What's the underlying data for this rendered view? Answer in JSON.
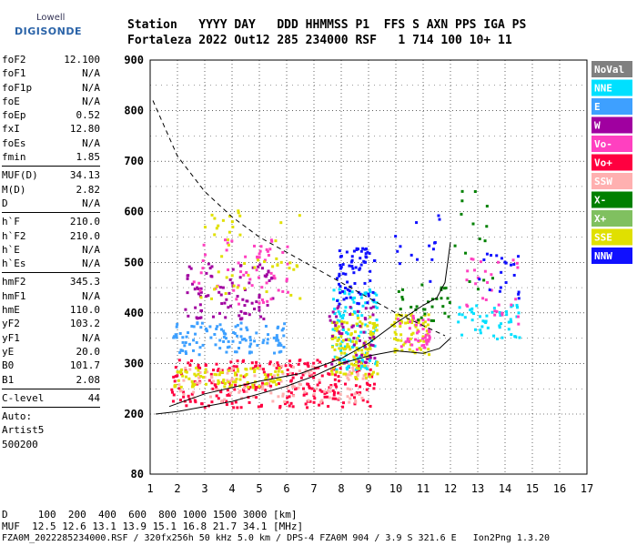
{
  "logo": {
    "top": "Lowell",
    "main": "DIGISONDE"
  },
  "header": {
    "line1": "Station   YYYY DAY   DDD HHMMSS P1  FFS S AXN PPS IGA PS",
    "line2": "Fortaleza 2022 Out12 285 234000 RSF   1 714 100 10+ 11"
  },
  "params": {
    "group1": [
      {
        "name": "foF2",
        "value": "12.100"
      },
      {
        "name": "foF1",
        "value": "N/A"
      },
      {
        "name": "foF1p",
        "value": "N/A"
      },
      {
        "name": "foE",
        "value": "N/A"
      },
      {
        "name": "foEp",
        "value": "0.52"
      },
      {
        "name": "fxI",
        "value": "12.80"
      },
      {
        "name": "foEs",
        "value": "N/A"
      },
      {
        "name": "fmin",
        "value": "1.85"
      }
    ],
    "group2": [
      {
        "name": "MUF(D)",
        "value": "34.13"
      },
      {
        "name": "M(D)",
        "value": "2.82"
      },
      {
        "name": "D",
        "value": "N/A"
      }
    ],
    "group3": [
      {
        "name": "h`F",
        "value": "210.0"
      },
      {
        "name": "h`F2",
        "value": "210.0"
      },
      {
        "name": "h`E",
        "value": "N/A"
      },
      {
        "name": "h`Es",
        "value": "N/A"
      }
    ],
    "group4": [
      {
        "name": "hmF2",
        "value": "345.3"
      },
      {
        "name": "hmF1",
        "value": "N/A"
      },
      {
        "name": "hmE",
        "value": "110.0"
      },
      {
        "name": "yF2",
        "value": "103.2"
      },
      {
        "name": "yF1",
        "value": "N/A"
      },
      {
        "name": "yE",
        "value": "20.0"
      },
      {
        "name": "B0",
        "value": "101.7"
      },
      {
        "name": "B1",
        "value": "2.08"
      }
    ],
    "group5": [
      {
        "name": "C-level",
        "value": "44"
      }
    ],
    "auto": [
      "Auto:",
      "Artist5",
      "500200"
    ]
  },
  "footer": {
    "line1": "D     100  200  400  600  800 1000 1500 3000 [km]",
    "line2": "MUF  12.5 12.6 13.1 13.9 15.1 16.8 21.7 34.1 [MHz]",
    "line3": "FZA0M_2022285234000.RSF / 320fx256h 50 kHz 5.0 km / DPS-4 FZA0M 904 / 3.9 S 321.6 E   Ion2Png 1.3.20"
  },
  "chart_data": {
    "type": "scatter",
    "x_range": [
      1,
      17
    ],
    "y_range": [
      80,
      900
    ],
    "x_ticks": [
      1,
      2,
      3,
      4,
      5,
      6,
      7,
      8,
      9,
      10,
      11,
      12,
      13,
      14,
      15,
      16,
      17
    ],
    "y_ticks": [
      80,
      200,
      300,
      400,
      500,
      600,
      700,
      800,
      900
    ],
    "grid": true,
    "legend_position": "right",
    "legend": [
      {
        "name": "NoVal",
        "color": "#808080"
      },
      {
        "name": "NNE",
        "color": "#00e0ff"
      },
      {
        "name": "E",
        "color": "#3ea0ff"
      },
      {
        "name": "W",
        "color": "#a000a0"
      },
      {
        "name": "Vo-",
        "color": "#ff40c0"
      },
      {
        "name": "Vo+",
        "color": "#ff0040"
      },
      {
        "name": "SSW",
        "color": "#ffb0b0"
      },
      {
        "name": "X-",
        "color": "#008000"
      },
      {
        "name": "X+",
        "color": "#80c060"
      },
      {
        "name": "SSE",
        "color": "#e0e000"
      },
      {
        "name": "NNW",
        "color": "#1010ff"
      }
    ],
    "clusters": [
      {
        "series": "Vo+",
        "x": [
          1.7,
          9.2
        ],
        "y": [
          215,
          310
        ],
        "n": 260
      },
      {
        "series": "SSW",
        "x": [
          2.0,
          9.0
        ],
        "y": [
          225,
          300
        ],
        "n": 120
      },
      {
        "series": "SSE",
        "x": [
          1.8,
          5.8
        ],
        "y": [
          255,
          295
        ],
        "n": 90
      },
      {
        "series": "E",
        "x": [
          1.8,
          6.0
        ],
        "y": [
          320,
          385
        ],
        "n": 110
      },
      {
        "series": "W",
        "x": [
          2.2,
          5.5
        ],
        "y": [
          390,
          500
        ],
        "n": 90
      },
      {
        "series": "Vo-",
        "x": [
          2.5,
          6.0
        ],
        "y": [
          420,
          560
        ],
        "n": 60
      },
      {
        "series": "SSE",
        "x": [
          2.8,
          6.5
        ],
        "y": [
          430,
          620
        ],
        "n": 50
      },
      {
        "series": "NNE",
        "x": [
          7.6,
          9.3
        ],
        "y": [
          290,
          450
        ],
        "n": 120
      },
      {
        "series": "SSE",
        "x": [
          7.6,
          9.3
        ],
        "y": [
          270,
          400
        ],
        "n": 120
      },
      {
        "series": "NNW",
        "x": [
          7.8,
          9.2
        ],
        "y": [
          420,
          530
        ],
        "n": 70
      },
      {
        "series": "W",
        "x": [
          7.5,
          9.2
        ],
        "y": [
          300,
          420
        ],
        "n": 50
      },
      {
        "series": "SSE",
        "x": [
          9.8,
          11.2
        ],
        "y": [
          320,
          400
        ],
        "n": 70
      },
      {
        "series": "Vo-",
        "x": [
          10.0,
          11.2
        ],
        "y": [
          330,
          400
        ],
        "n": 40
      },
      {
        "series": "X-",
        "x": [
          10.0,
          12.0
        ],
        "y": [
          380,
          460
        ],
        "n": 30
      },
      {
        "series": "NNE",
        "x": [
          12.2,
          14.5
        ],
        "y": [
          350,
          420
        ],
        "n": 50
      },
      {
        "series": "Vo-",
        "x": [
          12.5,
          14.5
        ],
        "y": [
          380,
          520
        ],
        "n": 30
      },
      {
        "series": "NNW",
        "x": [
          13.0,
          14.5
        ],
        "y": [
          430,
          520
        ],
        "n": 20
      },
      {
        "series": "X-",
        "x": [
          12.0,
          13.5
        ],
        "y": [
          440,
          650
        ],
        "n": 15
      },
      {
        "series": "NNW",
        "x": [
          9.5,
          12.5
        ],
        "y": [
          420,
          600
        ],
        "n": 15
      }
    ],
    "curves": {
      "dashed": [
        [
          1.1,
          820
        ],
        [
          2,
          710
        ],
        [
          3,
          640
        ],
        [
          4,
          590
        ],
        [
          5,
          550
        ],
        [
          6,
          520
        ],
        [
          7,
          490
        ],
        [
          8,
          460
        ],
        [
          9,
          430
        ],
        [
          10,
          400
        ],
        [
          11,
          375
        ],
        [
          11.8,
          355
        ]
      ],
      "solid_upper": [
        [
          1.7,
          215
        ],
        [
          3,
          240
        ],
        [
          5,
          265
        ],
        [
          6.5,
          280
        ],
        [
          8,
          310
        ],
        [
          9,
          340
        ],
        [
          10,
          380
        ],
        [
          11,
          415
        ],
        [
          11.5,
          430
        ],
        [
          11.8,
          460
        ],
        [
          12.0,
          540
        ]
      ],
      "solid_lower": [
        [
          1.2,
          200
        ],
        [
          2,
          205
        ],
        [
          3,
          215
        ],
        [
          4,
          225
        ],
        [
          5,
          240
        ],
        [
          6,
          255
        ],
        [
          7,
          275
        ],
        [
          8,
          300
        ],
        [
          9,
          315
        ],
        [
          10,
          325
        ],
        [
          11,
          320
        ],
        [
          11.6,
          330
        ],
        [
          12.0,
          350
        ]
      ]
    }
  }
}
